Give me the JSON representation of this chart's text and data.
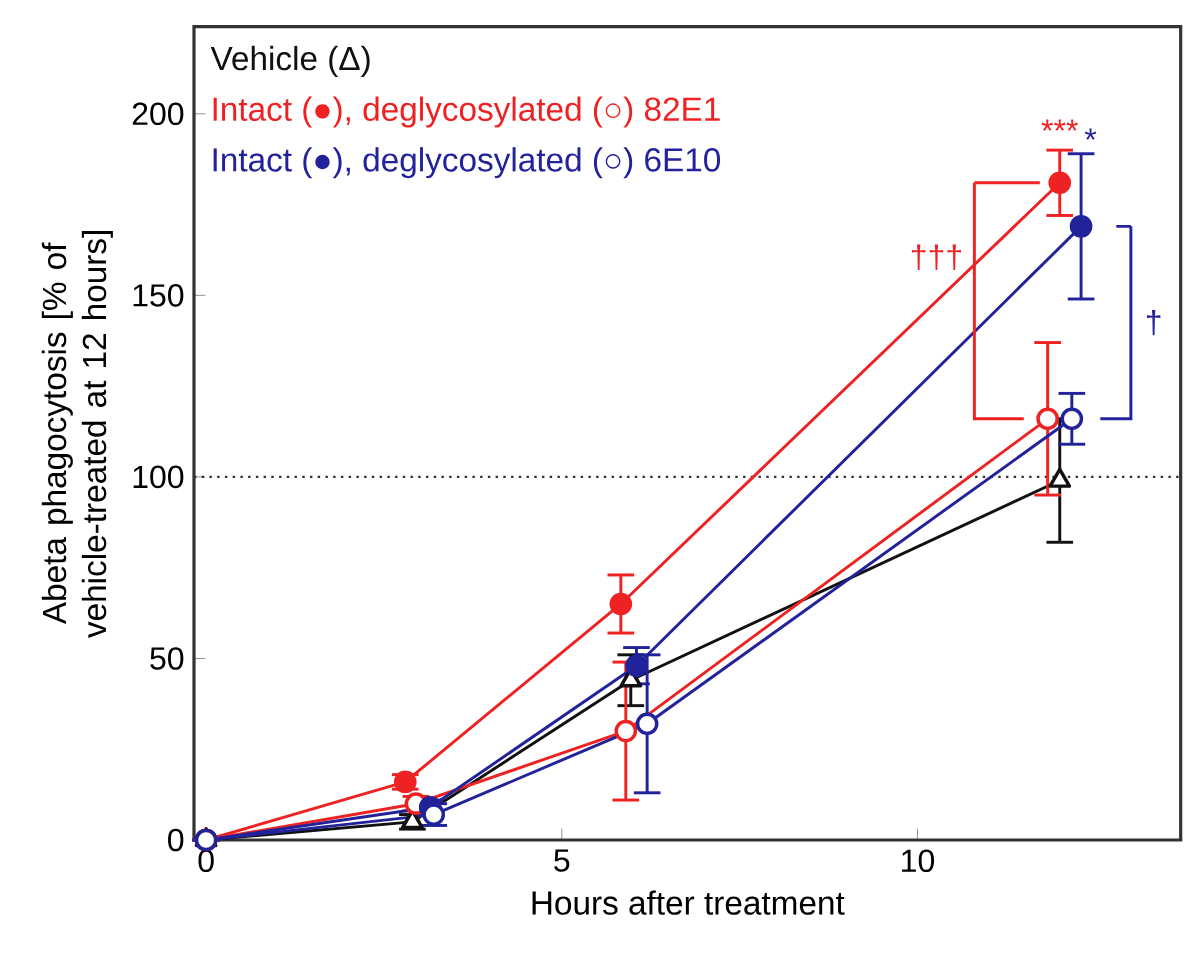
{
  "chart_data": {
    "type": "line",
    "xlabel": "Hours after treatment",
    "ylabel": "Abeta phagocytosis [% of vehicle-treated at 12 hours]",
    "xlim": [
      -0.17,
      13.7
    ],
    "ylim": [
      0,
      224
    ],
    "xticks": [
      0,
      5,
      10
    ],
    "yticks": [
      0,
      50,
      100,
      150,
      200
    ],
    "series": [
      {
        "color": "#111111",
        "marker": "triangle",
        "x": [
          0,
          2.9,
          5.97,
          12.0
        ],
        "values": [
          0,
          5,
          44,
          99
        ],
        "errors": [
          null,
          2,
          7,
          17
        ]
      },
      {
        "color": "#ee2222",
        "marker": "circle",
        "x": [
          0,
          2.8,
          5.83,
          12.0
        ],
        "values": [
          0,
          16,
          65,
          181
        ],
        "errors": [
          null,
          2,
          8,
          9
        ]
      },
      {
        "color": "#ee2222",
        "marker": "circle",
        "x": [
          0,
          2.95,
          5.9,
          11.83
        ],
        "values": [
          0,
          10,
          30,
          116
        ],
        "errors": [
          null,
          2,
          19,
          21
        ]
      },
      {
        "color": "#22229a",
        "marker": "circle",
        "x": [
          0,
          3.15,
          6.05,
          12.3
        ],
        "values": [
          0,
          9,
          48,
          169
        ],
        "errors": [
          null,
          2,
          5,
          20
        ]
      },
      {
        "color": "#22229a",
        "marker": "circle",
        "x": [
          0,
          3.2,
          6.2,
          12.17
        ],
        "values": [
          0,
          7,
          32,
          116
        ],
        "errors": [
          null,
          3,
          19,
          7
        ]
      }
    ],
    "ref_lines": [
      {
        "axis": "y",
        "value": 100,
        "color": "#333333",
        "line_style": "dotted"
      }
    ],
    "annotations": [
      "Vehicle (Δ)",
      "Intact (●), deglycosylated (○) 82E1",
      "Intact (●), deglycosylated (○) 6E10",
      "***",
      "*",
      "†††",
      "†"
    ]
  }
}
